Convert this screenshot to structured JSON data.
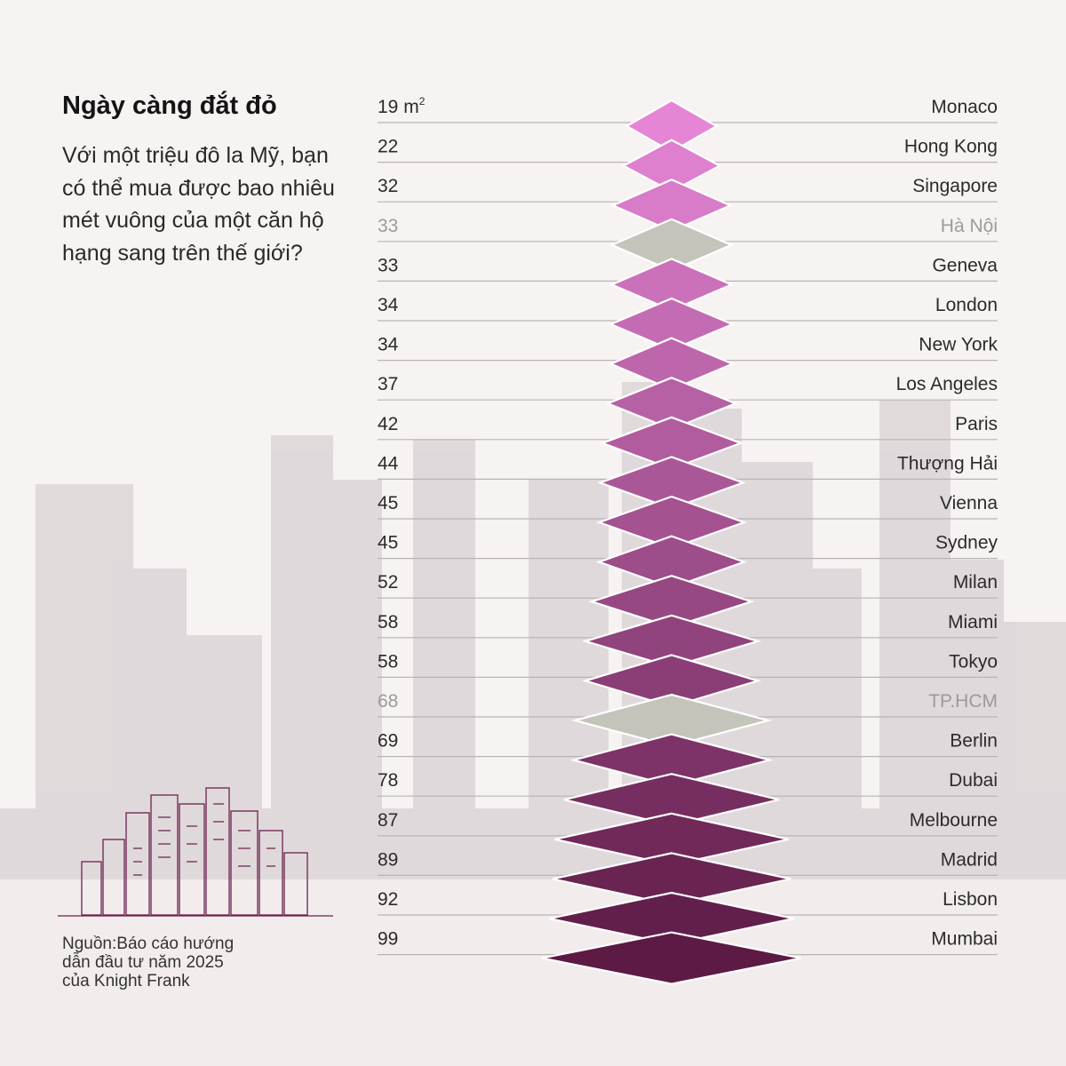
{
  "header": {
    "title": "Ngày càng đắt đỏ",
    "subtitle": "Với một triệu đô la Mỹ, bạn có thể mua được bao nhiêu mét vuông của một căn hộ hạng sang trên thế giới?"
  },
  "source": {
    "text": "Nguồn:Báo cáo hướng dẫn đầu tư năm 2025 của Knight Frank"
  },
  "colors": {
    "highlight_vietnam": "#c4c4ba",
    "series_start": "#e585d6",
    "series_end": "#5c1a44",
    "dim_text": "#9b9b9b"
  },
  "chart_data": {
    "type": "bar",
    "unit": "m²",
    "categories": [
      "Monaco",
      "Hong Kong",
      "Singapore",
      "Hà Nội",
      "Geneva",
      "London",
      "New York",
      "Los Angeles",
      "Paris",
      "Thượng Hải",
      "Vienna",
      "Sydney",
      "Milan",
      "Miami",
      "Tokyo",
      "TP.HCM",
      "Berlin",
      "Dubai",
      "Melbourne",
      "Madrid",
      "Lisbon",
      "Mumbai"
    ],
    "values": [
      19,
      22,
      32,
      33,
      33,
      34,
      34,
      37,
      42,
      44,
      45,
      45,
      52,
      58,
      58,
      68,
      69,
      78,
      87,
      89,
      92,
      99
    ],
    "value_labels": [
      "19 m",
      "22",
      "32",
      "33",
      "33",
      "34",
      "34",
      "37",
      "42",
      "44",
      "45",
      "45",
      "52",
      "58",
      "58",
      "68",
      "69",
      "78",
      "87",
      "89",
      "92",
      "99"
    ],
    "highlighted": [
      "Hà Nội",
      "TP.HCM"
    ]
  }
}
